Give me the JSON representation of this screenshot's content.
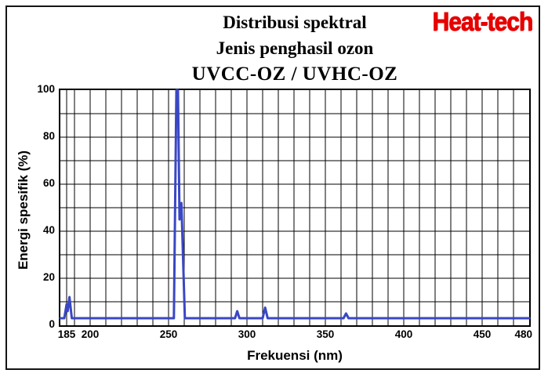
{
  "header": {
    "title_line1": "Distribusi spektral",
    "title_line2": "Jenis penghasil ozon",
    "title_line3": "UVCC-OZ / UVHC-OZ",
    "logo_text": "Heat-tech",
    "logo_color": "#e60000"
  },
  "chart_data": {
    "type": "line",
    "title": "Distribusi spektral — Jenis penghasil ozon UVCC-OZ / UVHC-OZ",
    "xlabel": "Frekuensi (nm)",
    "ylabel": "Energi spesifik (%)",
    "xlim": [
      181,
      480
    ],
    "ylim": [
      0,
      100
    ],
    "x_ticks": [
      185,
      200,
      250,
      300,
      350,
      400,
      450,
      480
    ],
    "y_ticks": [
      0,
      20,
      40,
      60,
      80,
      100
    ],
    "grid": {
      "x_step_nm": 10,
      "first_x_gridline_nm": 185,
      "y_step_pct": 10,
      "on": true
    },
    "line_color": "#3a47c4",
    "grid_color": "#000000",
    "baseline_pct": 3,
    "peaks": [
      {
        "nm": 185,
        "pct": 12
      },
      {
        "nm": 255,
        "pct": 100
      },
      {
        "nm": 258,
        "pct": 52
      },
      {
        "nm": 294,
        "pct": 6
      },
      {
        "nm": 312,
        "pct": 7.5
      },
      {
        "nm": 363,
        "pct": 5
      }
    ],
    "points": [
      [
        181,
        3
      ],
      [
        183.5,
        3
      ],
      [
        185,
        9
      ],
      [
        185.7,
        6
      ],
      [
        186.8,
        12
      ],
      [
        188.3,
        3
      ],
      [
        253.4,
        3
      ],
      [
        255,
        100
      ],
      [
        256,
        100
      ],
      [
        257,
        45
      ],
      [
        258.2,
        52
      ],
      [
        260.4,
        3
      ],
      [
        292.4,
        3
      ],
      [
        293.8,
        6
      ],
      [
        295.2,
        3
      ],
      [
        310,
        3
      ],
      [
        311.6,
        7.5
      ],
      [
        313.2,
        3
      ],
      [
        361.6,
        3
      ],
      [
        363.2,
        5
      ],
      [
        364.8,
        3
      ],
      [
        480,
        3
      ]
    ]
  }
}
